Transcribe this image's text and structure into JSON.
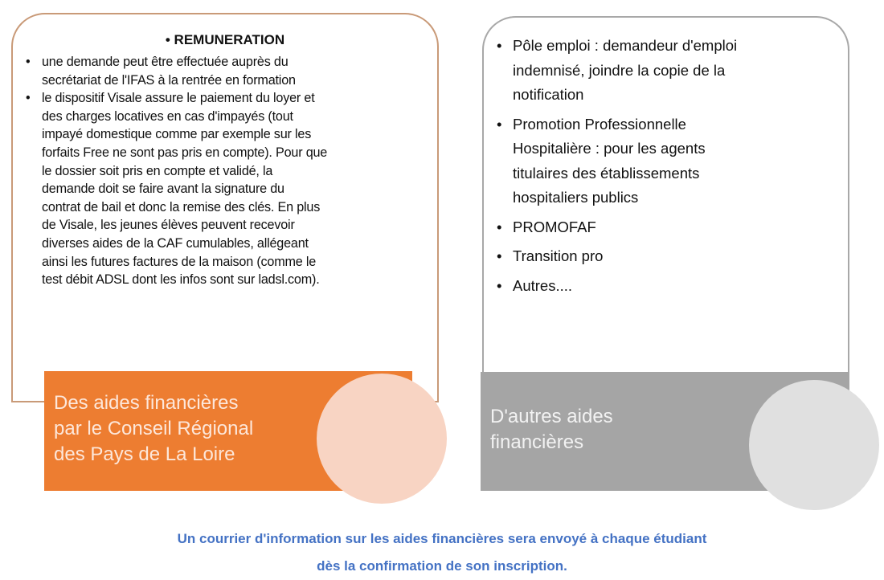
{
  "left_card": {
    "title": "• REMUNERATION",
    "items": [
      {
        "bullet": "•",
        "lines": [
          "une demande peut être effectuée auprès du",
          "secrétariat de l'IFAS à la rentrée en formation"
        ]
      },
      {
        "bullet": "•",
        "lines": [
          "le dispositif Visale assure le paiement du loyer et",
          "des charges locatives en cas d'impayés (tout",
          "impayé domestique comme par exemple sur les",
          "forfaits Free ne sont pas pris en compte). Pour que",
          "le dossier soit pris en compte et validé, la",
          "demande doit se faire avant la signature du",
          "contrat de bail et donc la remise des clés. En plus",
          "de Visale, les jeunes élèves peuvent recevoir",
          "diverses aides de la CAF cumulables, allégeant",
          "ainsi les futures factures de la maison (comme le",
          "test débit ADSL dont les infos sont sur ladsl.com)."
        ]
      }
    ],
    "label_lines": [
      "Des aides financières",
      "par le Conseil Régional",
      "des Pays de La Loire"
    ]
  },
  "right_card": {
    "items": [
      {
        "bullet": "•",
        "lines": [
          "Pôle emploi : demandeur d'emploi",
          "indemnisé, joindre la copie de la",
          "notification"
        ]
      },
      {
        "bullet": "•",
        "lines": [
          "Promotion Professionnelle",
          "Hospitalière : pour les agents",
          "titulaires des établissements",
          "hospitaliers publics"
        ]
      },
      {
        "bullet": "•",
        "lines": [
          "PROMOFAF"
        ]
      },
      {
        "bullet": "•",
        "lines": [
          "Transition pro"
        ]
      },
      {
        "bullet": "•",
        "lines": [
          "Autres...."
        ]
      }
    ],
    "label_lines": [
      "D'autres aides",
      "financières"
    ]
  },
  "footer": {
    "lines": [
      "Un courrier d'information sur les aides financières sera envoyé à chaque étudiant",
      "dès la confirmation de son inscription."
    ]
  },
  "colors": {
    "orange": "#ed7d31",
    "orange_light": "#f8d4c3",
    "gray": "#a5a5a5",
    "gray_light": "#e0e0e0",
    "footer_blue": "#4472c4"
  }
}
